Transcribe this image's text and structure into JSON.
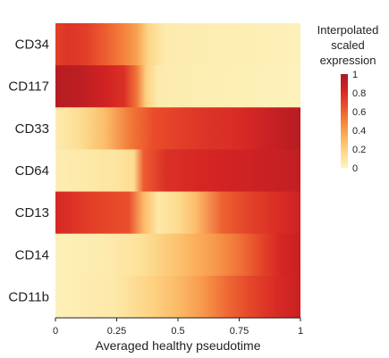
{
  "chart_data": {
    "type": "heatmap",
    "xlabel": "Averaged healthy pseudotime",
    "x_ticks": [
      "0",
      "0.25",
      "0.5",
      "0.75",
      "1"
    ],
    "xlim": [
      0,
      1
    ],
    "legend": {
      "title_lines": [
        "Interpolated",
        "scaled",
        "expression"
      ],
      "ticks": [
        "1",
        "0.8",
        "0.6",
        "0.4",
        "0.2",
        "0"
      ],
      "range": [
        0,
        1
      ],
      "placement": "right",
      "colors": [
        "#fdf5c2",
        "#fdd98a",
        "#fbb25e",
        "#f4823c",
        "#e94d2b",
        "#d42323",
        "#a81a22"
      ]
    },
    "rows": [
      {
        "label": "CD34",
        "values": [
          [
            0,
            0.72
          ],
          [
            0.05,
            0.76
          ],
          [
            0.12,
            0.73
          ],
          [
            0.2,
            0.62
          ],
          [
            0.28,
            0.5
          ],
          [
            0.33,
            0.4
          ],
          [
            0.38,
            0.18
          ],
          [
            0.45,
            0.06
          ],
          [
            1,
            0.03
          ]
        ]
      },
      {
        "label": "CD117",
        "values": [
          [
            0,
            0.95
          ],
          [
            0.1,
            0.92
          ],
          [
            0.2,
            0.85
          ],
          [
            0.28,
            0.78
          ],
          [
            0.33,
            0.55
          ],
          [
            0.37,
            0.2
          ],
          [
            0.42,
            0.06
          ],
          [
            1,
            0.02
          ]
        ]
      },
      {
        "label": "CD33",
        "values": [
          [
            0,
            0.06
          ],
          [
            0.1,
            0.14
          ],
          [
            0.2,
            0.28
          ],
          [
            0.3,
            0.52
          ],
          [
            0.4,
            0.67
          ],
          [
            0.5,
            0.72
          ],
          [
            0.6,
            0.76
          ],
          [
            0.75,
            0.8
          ],
          [
            0.88,
            0.88
          ],
          [
            1,
            0.95
          ]
        ]
      },
      {
        "label": "CD64",
        "values": [
          [
            0,
            0.05
          ],
          [
            0.15,
            0.08
          ],
          [
            0.25,
            0.1
          ],
          [
            0.32,
            0.15
          ],
          [
            0.36,
            0.62
          ],
          [
            0.45,
            0.78
          ],
          [
            0.6,
            0.82
          ],
          [
            0.75,
            0.85
          ],
          [
            1,
            0.9
          ]
        ]
      },
      {
        "label": "CD13",
        "values": [
          [
            0,
            0.82
          ],
          [
            0.1,
            0.75
          ],
          [
            0.2,
            0.7
          ],
          [
            0.3,
            0.66
          ],
          [
            0.36,
            0.3
          ],
          [
            0.42,
            0.08
          ],
          [
            0.5,
            0.15
          ],
          [
            0.57,
            0.28
          ],
          [
            0.68,
            0.6
          ],
          [
            0.8,
            0.72
          ],
          [
            0.92,
            0.8
          ],
          [
            1,
            0.86
          ]
        ]
      },
      {
        "label": "CD14",
        "values": [
          [
            0,
            0.03
          ],
          [
            0.2,
            0.06
          ],
          [
            0.35,
            0.12
          ],
          [
            0.45,
            0.22
          ],
          [
            0.55,
            0.32
          ],
          [
            0.65,
            0.42
          ],
          [
            0.75,
            0.55
          ],
          [
            0.85,
            0.72
          ],
          [
            0.92,
            0.82
          ],
          [
            1,
            0.88
          ]
        ]
      },
      {
        "label": "CD11b",
        "values": [
          [
            0,
            0.03
          ],
          [
            0.25,
            0.08
          ],
          [
            0.4,
            0.2
          ],
          [
            0.5,
            0.3
          ],
          [
            0.6,
            0.42
          ],
          [
            0.7,
            0.58
          ],
          [
            0.8,
            0.7
          ],
          [
            0.9,
            0.8
          ],
          [
            1,
            0.88
          ]
        ]
      }
    ]
  }
}
